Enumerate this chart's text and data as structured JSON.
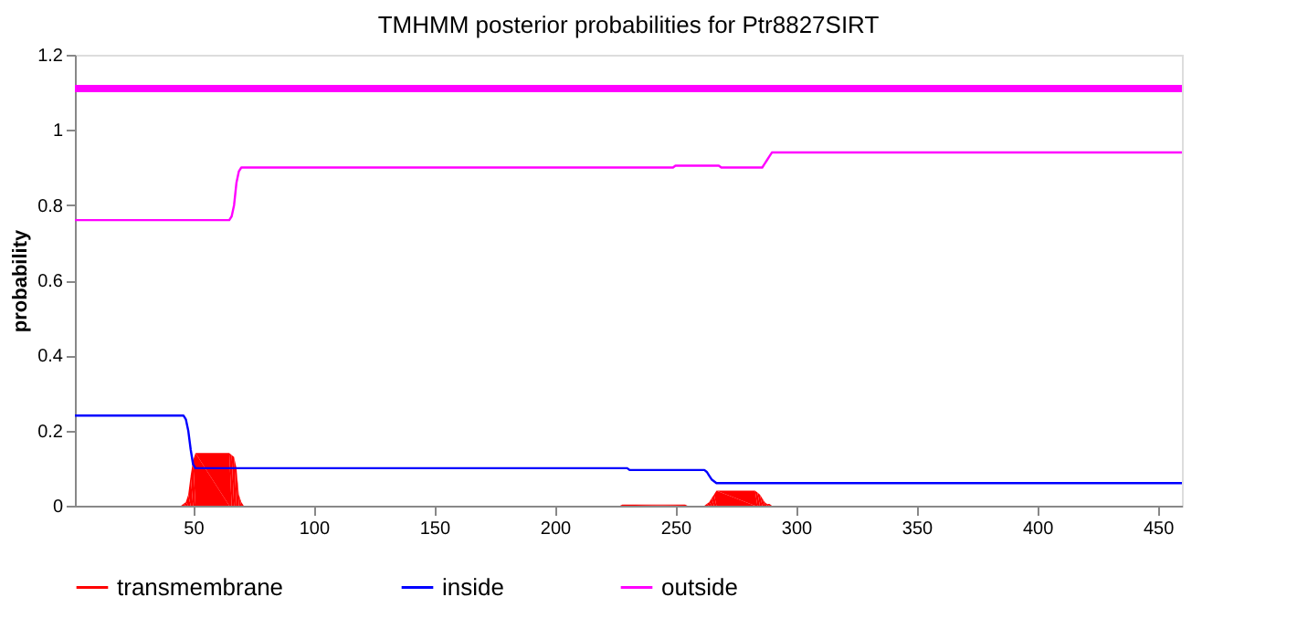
{
  "chart_data": {
    "type": "line",
    "title": "TMHMM posterior probabilities for Ptr8827SIRT",
    "ylabel": "probability",
    "xlim": [
      1,
      460
    ],
    "xticks": [
      50,
      100,
      150,
      200,
      250,
      300,
      350,
      400,
      450
    ],
    "ylim": [
      0,
      1.2
    ],
    "yticks": [
      0,
      0.2,
      0.4,
      0.6,
      0.8,
      1,
      1.2
    ],
    "grid": false,
    "legend": "bottom",
    "series": [
      {
        "name": "transmembrane",
        "type": "area",
        "color": "#ff0000",
        "x": [
          1,
          45,
          46,
          47,
          48,
          49,
          50,
          51,
          65,
          66,
          67,
          68,
          69,
          70,
          71,
          227,
          228,
          254,
          255,
          262,
          263,
          264,
          265,
          266,
          267,
          283,
          284,
          285,
          286,
          287,
          288,
          289,
          290,
          460
        ],
        "values": [
          0,
          0,
          0.005,
          0.01,
          0.03,
          0.08,
          0.12,
          0.14,
          0.14,
          0.135,
          0.13,
          0.1,
          0.03,
          0.01,
          0,
          0,
          0.003,
          0.003,
          0,
          0,
          0.005,
          0.01,
          0.02,
          0.03,
          0.04,
          0.04,
          0.035,
          0.03,
          0.02,
          0.01,
          0.005,
          0.005,
          0,
          0
        ]
      },
      {
        "name": "inside",
        "color": "#0000ff",
        "x": [
          1,
          46,
          47,
          48,
          49,
          50,
          51,
          230,
          231,
          262,
          263,
          264,
          265,
          266,
          267,
          460
        ],
        "values": [
          0.24,
          0.24,
          0.23,
          0.2,
          0.15,
          0.11,
          0.1,
          0.1,
          0.095,
          0.095,
          0.09,
          0.08,
          0.07,
          0.065,
          0.06,
          0.06
        ]
      },
      {
        "name": "outside",
        "color": "#ff00ff",
        "x": [
          1,
          65,
          66,
          67,
          68,
          69,
          70,
          249,
          250,
          268,
          269,
          286,
          287,
          288,
          289,
          290,
          460
        ],
        "values": [
          0.76,
          0.76,
          0.77,
          0.8,
          0.86,
          0.89,
          0.9,
          0.9,
          0.905,
          0.905,
          0.9,
          0.9,
          0.91,
          0.92,
          0.93,
          0.94,
          0.94
        ]
      }
    ],
    "ref_lines": [
      {
        "axis": "y",
        "value": 1.11,
        "color": "#ff00ff"
      }
    ]
  }
}
